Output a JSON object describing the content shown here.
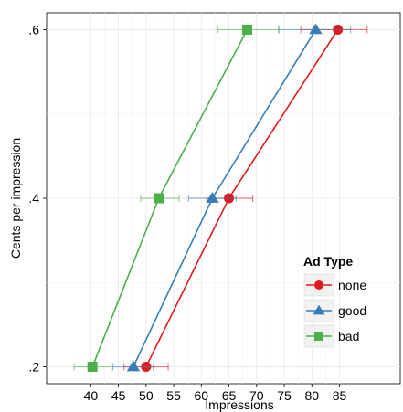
{
  "chart_data": {
    "type": "line",
    "xlabel": "Impressions",
    "ylabel": "Cents per impression",
    "xlim": [
      32,
      96
    ],
    "ylim": [
      0.18,
      0.62
    ],
    "x_ticks": [
      40,
      45,
      50,
      55,
      60,
      65,
      70,
      75,
      80,
      85
    ],
    "x_tick_labels": [
      "40",
      "45",
      "50",
      "55",
      "60",
      "65",
      "70",
      "75",
      "80",
      "85"
    ],
    "y_ticks": [
      0.2,
      0.4,
      0.6
    ],
    "y_tick_labels": [
      ".2",
      ".4",
      ".6"
    ],
    "grid": true,
    "legend": {
      "title": "Ad Type",
      "position": "bottom-right"
    },
    "series": [
      {
        "name": "none",
        "color": "#e31a1c",
        "marker": "circle",
        "points": [
          {
            "y": 0.2,
            "x": 50.0,
            "xmin": 46.0,
            "xmax": 54.0
          },
          {
            "y": 0.4,
            "x": 65.0,
            "xmin": 61.0,
            "xmax": 69.3
          },
          {
            "y": 0.6,
            "x": 84.7,
            "xmin": 78.0,
            "xmax": 90.0
          }
        ]
      },
      {
        "name": "good",
        "color": "#377eb8",
        "marker": "triangle",
        "points": [
          {
            "y": 0.2,
            "x": 47.7,
            "xmin": 44.0,
            "xmax": 51.3
          },
          {
            "y": 0.4,
            "x": 62.0,
            "xmin": 57.7,
            "xmax": 66.3
          },
          {
            "y": 0.6,
            "x": 80.7,
            "xmin": 74.0,
            "xmax": 87.0
          }
        ]
      },
      {
        "name": "bad",
        "color": "#4daf4a",
        "marker": "square",
        "points": [
          {
            "y": 0.2,
            "x": 40.3,
            "xmin": 37.0,
            "xmax": 43.7
          },
          {
            "y": 0.4,
            "x": 52.3,
            "xmin": 49.0,
            "xmax": 56.0
          },
          {
            "y": 0.6,
            "x": 68.3,
            "xmin": 63.0,
            "xmax": 74.0
          }
        ]
      }
    ]
  }
}
